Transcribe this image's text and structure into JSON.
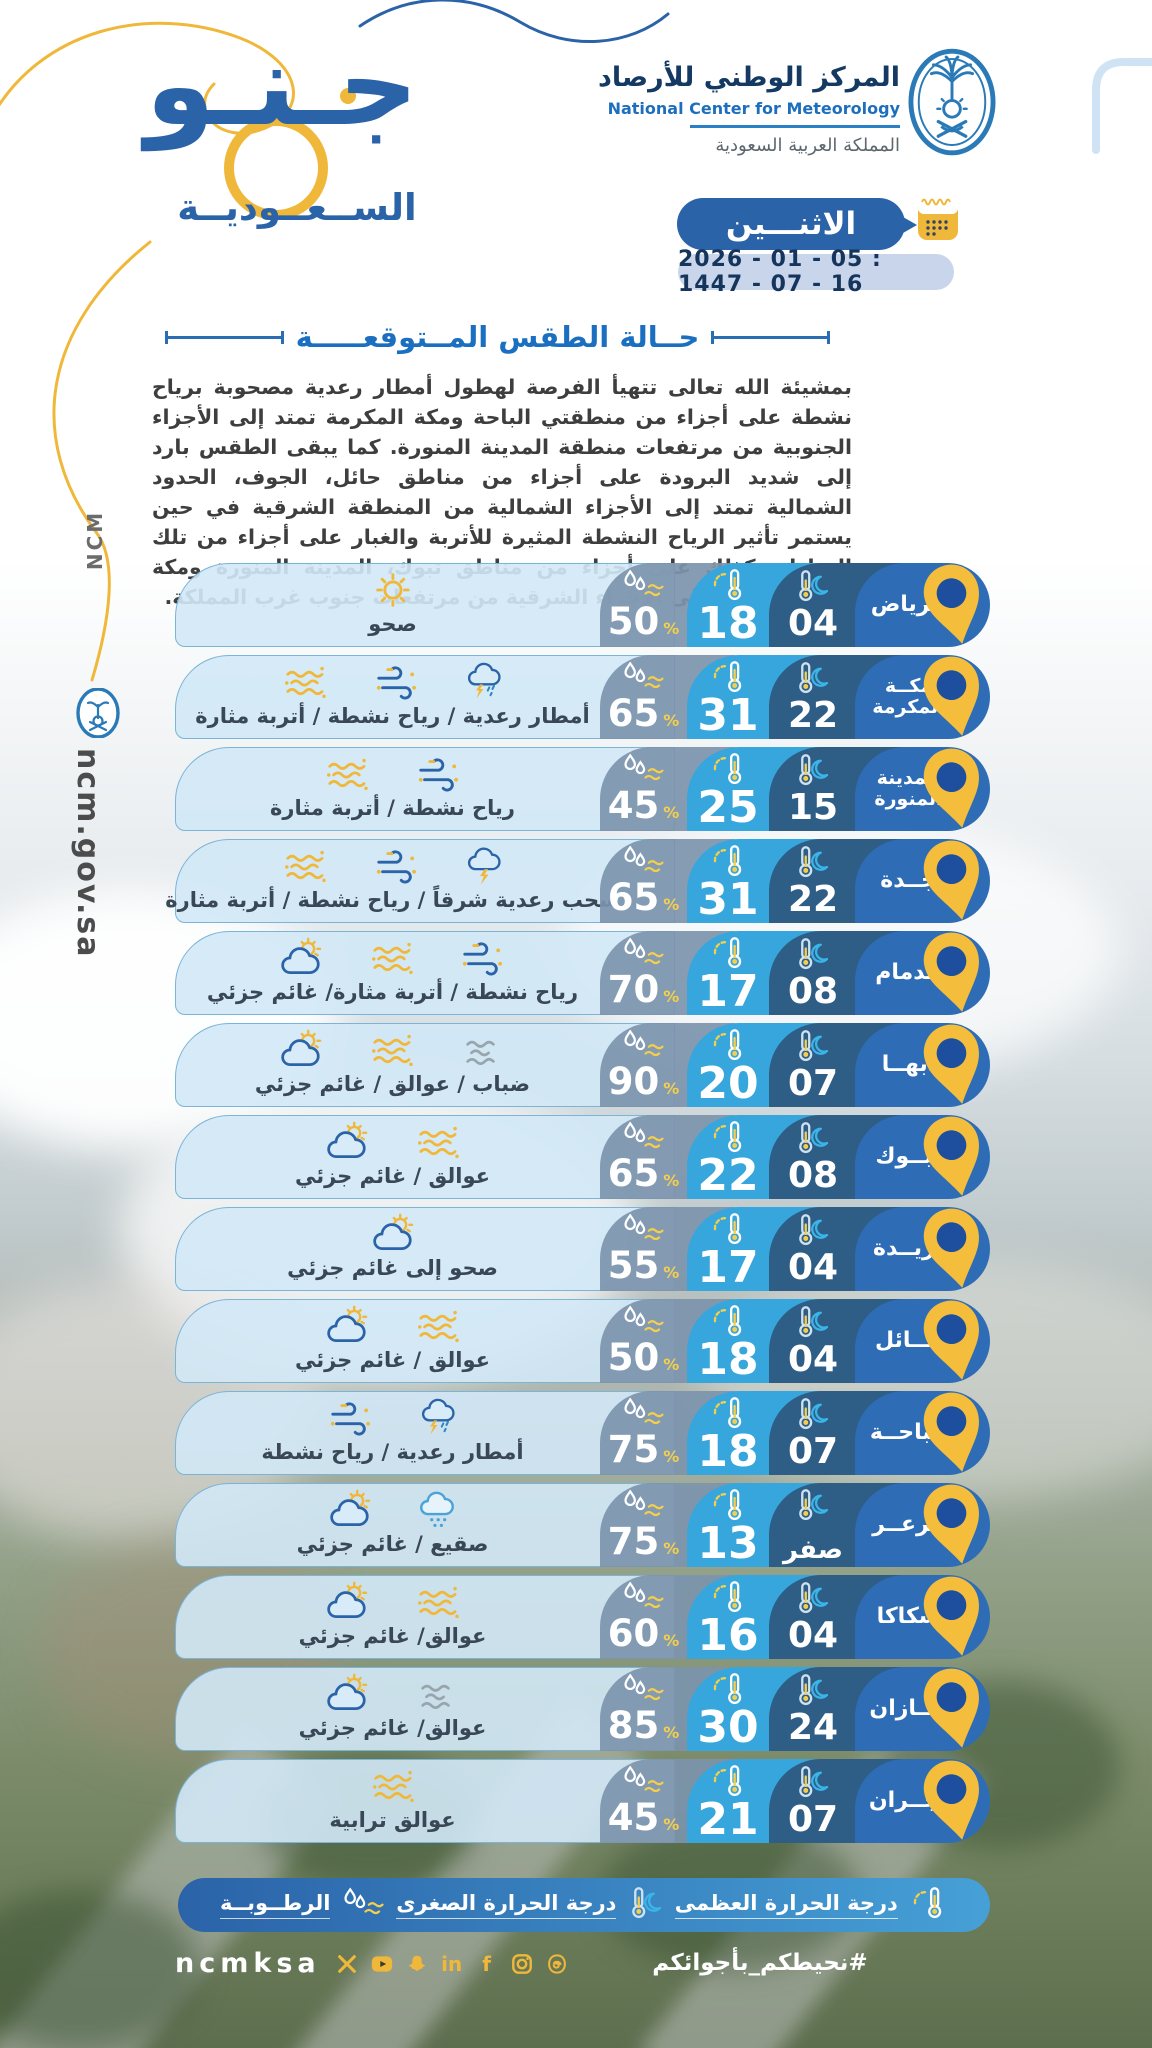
{
  "header": {
    "brand_main": "جـنـو",
    "brand_sub": "الســعــوديــة",
    "org_title_ar": "المركز الوطني للأرصاد",
    "org_title_en": "National Center for Meteorology",
    "org_country_ar": "المملكة العربية السعودية",
    "vertical_ncm": "NCM",
    "vertical_site": "ncm.gov.sa"
  },
  "date": {
    "day": "الاثنـــين",
    "date_line": "2026 - 01 - 05 : 1447 - 07 - 16"
  },
  "section": {
    "title": "حــالة الطقس المــتوقعـــــة",
    "paragraph": "بمشيئة الله تعالى تتهيأ الفرصة لهطول أمطار رعدية مصحوبة برياح نشطة على أجزاء من منطقتي الباحة ومكة المكرمة تمتد إلى الأجزاء الجنوبية من مرتفعات منطقة المدينة المنورة. كما يبقى الطقس بارد إلى شديد البرودة على أجزاء من مناطق حائل، الجوف، الحدود الشمالية تمتد إلى الأجزاء الشمالية من المنطقة الشرقية في حين يستمر تأثير الرياح النشطة المثيرة للأتربة والغبار على أجزاء من تلك المناطق كذلك على أجزاء من مناطق تبوك، المدينة المنورة ومكة المكرمة تمتد إلى الأجزاء الشرقية من مرتفعات جنوب غرب المملكة."
  },
  "units": {
    "humidity": "%"
  },
  "cell_icons": {
    "humidity": "droplets-wind",
    "max": "thermo-sun",
    "min": "thermo-moon"
  },
  "rows": [
    {
      "city": "الرياض",
      "min": "04",
      "max": "18",
      "humidity": "50",
      "condition": "صحو",
      "icons": [
        "sun"
      ]
    },
    {
      "city": "مكــة المكرمة",
      "min": "22",
      "max": "31",
      "humidity": "65",
      "condition": "أمطار رعدية / رياح نشطة / أتربة مثارة",
      "icons": [
        "thunder-rain",
        "wind",
        "dust"
      ]
    },
    {
      "city": "المدينة المنورة",
      "min": "15",
      "max": "25",
      "humidity": "45",
      "condition": "رياح نشطة / أتربة مثارة",
      "icons": [
        "wind",
        "dust"
      ]
    },
    {
      "city": "جــدة",
      "min": "22",
      "max": "31",
      "humidity": "65",
      "condition": "سحب رعدية شرقاً / رياح نشطة / أتربة مثارة",
      "icons": [
        "thunder-cloud",
        "wind",
        "dust"
      ]
    },
    {
      "city": "الدمام",
      "min": "08",
      "max": "17",
      "humidity": "70",
      "condition": "رياح نشطة / أتربة مثارة/ غائم جزئي",
      "icons": [
        "wind",
        "dust",
        "partly-cloudy"
      ]
    },
    {
      "city": "أبهــا",
      "min": "07",
      "max": "20",
      "humidity": "90",
      "condition": "ضباب / عوالق / غائم جزئي",
      "icons": [
        "fog",
        "dust",
        "partly-cloudy"
      ]
    },
    {
      "city": "تبــوك",
      "min": "08",
      "max": "22",
      "humidity": "65",
      "condition": "عوالق / غائم جزئي",
      "icons": [
        "dust",
        "partly-cloudy"
      ]
    },
    {
      "city": "بريــدة",
      "min": "04",
      "max": "17",
      "humidity": "55",
      "condition": "صحو إلى غائم جزئي",
      "icons": [
        "partly-cloudy"
      ]
    },
    {
      "city": "حــائل",
      "min": "04",
      "max": "18",
      "humidity": "50",
      "condition": "عوالق / غائم جزئي",
      "icons": [
        "dust",
        "partly-cloudy"
      ]
    },
    {
      "city": "الباحــة",
      "min": "07",
      "max": "18",
      "humidity": "75",
      "condition": "أمطار رعدية / رياح نشطة",
      "icons": [
        "thunder-rain",
        "wind"
      ]
    },
    {
      "city": "عرعــر",
      "min": "صفر",
      "max": "13",
      "humidity": "75",
      "condition": "صقيع / غائم جزئي",
      "icons": [
        "frost",
        "partly-cloudy"
      ]
    },
    {
      "city": "سكاكا",
      "min": "04",
      "max": "16",
      "humidity": "60",
      "condition": "عوالق/ غائم جزئي",
      "icons": [
        "dust",
        "partly-cloudy"
      ]
    },
    {
      "city": "جــازان",
      "min": "24",
      "max": "30",
      "humidity": "85",
      "condition": "عوالق/ غائم جزئي",
      "icons": [
        "fog",
        "partly-cloudy"
      ]
    },
    {
      "city": "نجــران",
      "min": "07",
      "max": "21",
      "humidity": "45",
      "condition": "عوالق ترابية",
      "icons": [
        "dust"
      ]
    }
  ],
  "legend": {
    "items": [
      {
        "label": "درجة الحرارة العظمى",
        "icon": "thermo-sun"
      },
      {
        "label": "درجة الحرارة الصغرى",
        "icon": "thermo-moon"
      },
      {
        "label": "الرطــوبــة",
        "icon": "droplets-wind"
      }
    ]
  },
  "footer": {
    "handle": "ncmksa",
    "hashtag": "#نحيطكم_بأجوائكم",
    "social": [
      "x",
      "youtube",
      "snapchat",
      "linkedin",
      "facebook",
      "instagram",
      "threads"
    ]
  },
  "colors": {
    "primary_blue": "#2b63a8",
    "city_cell": "#2e6db6",
    "min_cell": "#2e5d85",
    "max_cell": "#36a6dc",
    "humidity_cell": "#7c94ac",
    "panel_light": "#d1e8f6",
    "accent_yellow": "#f0b83a",
    "title_blue": "#1b6fc0",
    "pin_inner": "#1d4f9e"
  }
}
